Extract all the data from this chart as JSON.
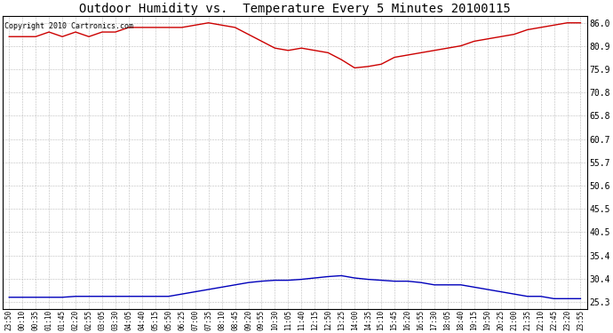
{
  "title": "Outdoor Humidity vs.  Temperature Every 5 Minutes 20100115",
  "copyright_text": "Copyright 2010 Cartronics.com",
  "yticks": [
    25.3,
    30.4,
    35.4,
    40.5,
    45.5,
    50.6,
    55.7,
    60.7,
    65.8,
    70.8,
    75.9,
    80.9,
    86.0
  ],
  "ylim": [
    23.8,
    87.5
  ],
  "bg_color": "#ffffff",
  "plot_bg_color": "#ffffff",
  "grid_color": "#bbbbbb",
  "red_color": "#cc0000",
  "blue_color": "#0000bb",
  "x_labels": [
    "23:50",
    "00:10",
    "00:35",
    "01:10",
    "01:45",
    "02:20",
    "02:55",
    "03:05",
    "03:30",
    "04:05",
    "04:40",
    "05:15",
    "05:50",
    "06:25",
    "07:00",
    "07:35",
    "08:10",
    "08:45",
    "09:20",
    "09:55",
    "10:30",
    "11:05",
    "11:40",
    "12:15",
    "12:50",
    "13:25",
    "14:00",
    "14:35",
    "15:10",
    "15:45",
    "16:20",
    "16:55",
    "17:30",
    "18:05",
    "18:40",
    "19:15",
    "19:50",
    "20:25",
    "21:00",
    "21:35",
    "22:10",
    "22:45",
    "23:20",
    "23:55"
  ],
  "humidity_values": [
    83.0,
    83.0,
    83.0,
    84.0,
    83.0,
    84.0,
    83.0,
    84.0,
    84.0,
    85.0,
    85.0,
    85.0,
    85.0,
    85.0,
    85.5,
    86.0,
    85.5,
    85.0,
    83.5,
    82.0,
    80.5,
    80.0,
    80.5,
    80.0,
    79.5,
    78.0,
    76.2,
    76.5,
    77.0,
    78.5,
    79.0,
    79.5,
    80.0,
    80.5,
    81.0,
    82.0,
    82.5,
    83.0,
    83.5,
    84.5,
    85.0,
    85.5,
    86.0,
    86.0
  ],
  "temperature_values": [
    26.3,
    26.3,
    26.3,
    26.3,
    26.3,
    26.5,
    26.5,
    26.5,
    26.5,
    26.5,
    26.5,
    26.5,
    26.5,
    27.0,
    27.5,
    28.0,
    28.5,
    29.0,
    29.5,
    29.8,
    30.0,
    30.0,
    30.2,
    30.5,
    30.8,
    31.0,
    30.5,
    30.2,
    30.0,
    29.8,
    29.8,
    29.5,
    29.0,
    29.0,
    29.0,
    28.5,
    28.0,
    27.5,
    27.0,
    26.5,
    26.5,
    26.0,
    26.0,
    26.0
  ],
  "figsize": [
    6.9,
    3.75
  ],
  "dpi": 100,
  "title_fontsize": 10,
  "ytick_fontsize": 7,
  "xtick_fontsize": 5.5,
  "copyright_fontsize": 6,
  "linewidth": 1.0
}
